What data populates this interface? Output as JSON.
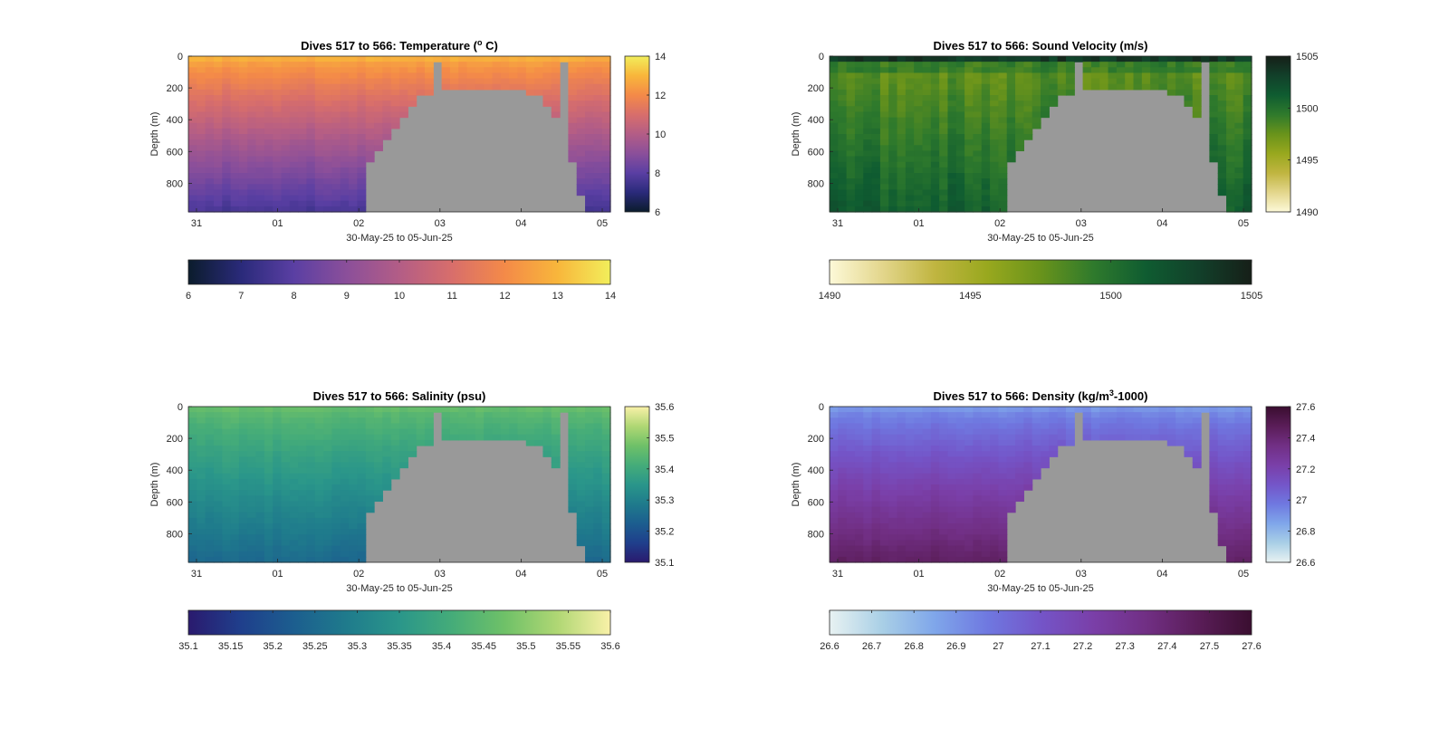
{
  "chart_data": [
    {
      "type": "heatmap",
      "id": "temperature",
      "title": "Dives 517 to 566: Temperature (° C)",
      "title_parts": {
        "pre": "Dives 517 to 566: Temperature (",
        "sup": "o",
        "post": " C)"
      },
      "xlabel": "30-May-25 to 05-Jun-25",
      "ylabel": "Depth (m)",
      "x_ticks": [
        "31",
        "01",
        "02",
        "03",
        "04",
        "05"
      ],
      "y_ticks": [
        "0",
        "200",
        "400",
        "600",
        "800"
      ],
      "x_range": [
        -0.1,
        5.1
      ],
      "y_range": [
        0,
        980
      ],
      "y_reversed": true,
      "dives": 50,
      "colormap": [
        "#0b1c2c",
        "#2a2a7a",
        "#5a3fa3",
        "#8b4f9a",
        "#b35d86",
        "#d86e6b",
        "#f48a48",
        "#f8b63b",
        "#f2ee5b"
      ],
      "clim": [
        6,
        14
      ],
      "surface_value": 12.8,
      "bottom_value": 7.6,
      "colorbar_right": {
        "ticks": [
          "6",
          "8",
          "10",
          "12",
          "14"
        ],
        "min": 6,
        "max": 14
      },
      "colorbar_bottom": {
        "ticks": [
          "6",
          "7",
          "8",
          "9",
          "10",
          "11",
          "12",
          "13",
          "14"
        ],
        "min": 6,
        "max": 14
      }
    },
    {
      "type": "heatmap",
      "id": "sound-velocity",
      "title": "Dives 517 to 566: Sound Velocity (m/s)",
      "title_parts": {
        "pre": "Dives 517 to 566: Sound Velocity (m/s)",
        "sup": "",
        "post": ""
      },
      "xlabel": "30-May-25 to 05-Jun-25",
      "ylabel": "Depth (m)",
      "x_ticks": [
        "31",
        "01",
        "02",
        "03",
        "04",
        "05"
      ],
      "y_ticks": [
        "0",
        "200",
        "400",
        "600",
        "800"
      ],
      "x_range": [
        -0.1,
        5.1
      ],
      "y_range": [
        0,
        980
      ],
      "y_reversed": true,
      "dives": 50,
      "colormap": [
        "#fdf9d8",
        "#e3d68c",
        "#c0b540",
        "#98a81e",
        "#69931b",
        "#2f7a2c",
        "#0f5c31",
        "#12402a",
        "#161f18"
      ],
      "clim": [
        1490,
        1505
      ],
      "surface_value": 1503.5,
      "bottom_value": 1500.6,
      "mid_value": 1497.5,
      "colorbar_right": {
        "ticks": [
          "1490",
          "1495",
          "1500",
          "1505"
        ],
        "min": 1490,
        "max": 1505
      },
      "colorbar_bottom": {
        "ticks": [
          "1490",
          "1495",
          "1500",
          "1505"
        ],
        "min": 1490,
        "max": 1505
      }
    },
    {
      "type": "heatmap",
      "id": "salinity",
      "title": "Dives 517 to 566: Salinity (psu)",
      "title_parts": {
        "pre": "Dives 517 to 566: Salinity (psu)",
        "sup": "",
        "post": ""
      },
      "xlabel": "30-May-25 to 05-Jun-25",
      "ylabel": "Depth (m)",
      "x_ticks": [
        "31",
        "01",
        "02",
        "03",
        "04",
        "05"
      ],
      "y_ticks": [
        "0",
        "200",
        "400",
        "600",
        "800"
      ],
      "x_range": [
        -0.1,
        5.1
      ],
      "y_range": [
        0,
        980
      ],
      "y_reversed": true,
      "dives": 50,
      "colormap": [
        "#2a1a6e",
        "#1f3f8c",
        "#1c5e8f",
        "#1f7b8c",
        "#2a968a",
        "#45ac79",
        "#6fc168",
        "#b0d774",
        "#f9f1a8"
      ],
      "clim": [
        35.1,
        35.6
      ],
      "surface_value": 35.46,
      "bottom_value": 35.25,
      "colorbar_right": {
        "ticks": [
          "35.1",
          "35.2",
          "35.3",
          "35.4",
          "35.5",
          "35.6"
        ],
        "min": 35.1,
        "max": 35.6
      },
      "colorbar_bottom": {
        "ticks": [
          "35.1",
          "35.15",
          "35.2",
          "35.25",
          "35.3",
          "35.35",
          "35.4",
          "35.45",
          "35.5",
          "35.55",
          "35.6"
        ],
        "min": 35.1,
        "max": 35.6
      }
    },
    {
      "type": "heatmap",
      "id": "density",
      "title": "Dives 517 to 566: Density (kg/m³-1000)",
      "title_parts": {
        "pre": "Dives 517 to 566: Density (kg/m",
        "sup": "3",
        "post": "-1000)"
      },
      "xlabel": "30-May-25 to 05-Jun-25",
      "ylabel": "Depth (m)",
      "x_ticks": [
        "31",
        "01",
        "02",
        "03",
        "04",
        "05"
      ],
      "y_ticks": [
        "0",
        "200",
        "400",
        "600",
        "800"
      ],
      "x_range": [
        -0.1,
        5.1
      ],
      "y_range": [
        0,
        980
      ],
      "y_reversed": true,
      "dives": 50,
      "colormap": [
        "#e8f2f2",
        "#a9cfe6",
        "#7fa6ea",
        "#6f78e0",
        "#7455c8",
        "#7a3fa8",
        "#712f84",
        "#5a1d58",
        "#3a0e30"
      ],
      "clim": [
        26.6,
        27.6
      ],
      "surface_value": 26.9,
      "bottom_value": 27.45,
      "colorbar_right": {
        "ticks": [
          "26.6",
          "26.8",
          "27",
          "27.2",
          "27.4",
          "27.6"
        ],
        "min": 26.6,
        "max": 27.6
      },
      "colorbar_bottom": {
        "ticks": [
          "26.6",
          "26.7",
          "26.8",
          "26.9",
          "27",
          "27.1",
          "27.2",
          "27.3",
          "27.4",
          "27.5",
          "27.6"
        ],
        "min": 26.6,
        "max": 27.6
      }
    }
  ],
  "profile_bottom_depths_m": [
    980,
    980,
    980,
    980,
    980,
    980,
    980,
    980,
    980,
    980,
    980,
    980,
    980,
    980,
    980,
    980,
    980,
    980,
    980,
    980,
    980,
    650,
    600,
    520,
    440,
    390,
    300,
    260,
    230,
    200,
    210,
    205,
    200,
    200,
    200,
    200,
    200,
    205,
    210,
    220,
    240,
    260,
    300,
    380,
    30,
    650,
    860,
    980,
    980,
    980
  ],
  "gap_dives": [
    {
      "index": 29,
      "depth_m": 200
    }
  ],
  "colors": {
    "no_data": "#999999",
    "axis": "#262626"
  }
}
